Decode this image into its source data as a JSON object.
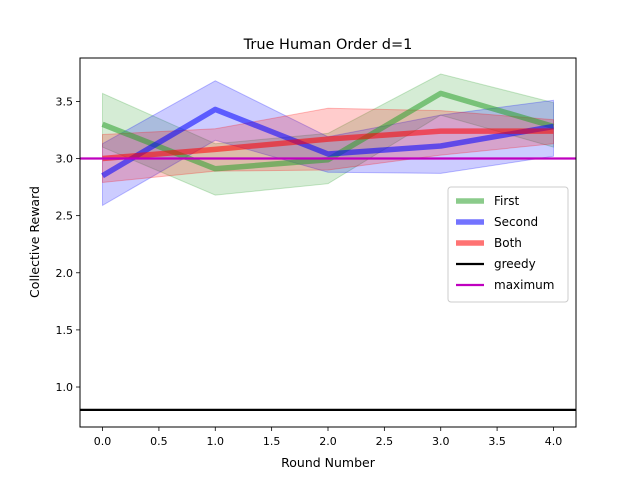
{
  "chart_data": {
    "type": "line",
    "title": "True Human Order d=1",
    "xlabel": "Round Number",
    "ylabel": "Collective Reward",
    "x": [
      0,
      1,
      2,
      3,
      4
    ],
    "xlim": [
      -0.2,
      4.2
    ],
    "ylim": [
      0.65,
      3.88
    ],
    "xticks": [
      0.0,
      0.5,
      1.0,
      1.5,
      2.0,
      2.5,
      3.0,
      3.5,
      4.0
    ],
    "yticks": [
      1.0,
      1.5,
      2.0,
      2.5,
      3.0,
      3.5
    ],
    "xtick_labels": [
      "0.0",
      "0.5",
      "1.0",
      "1.5",
      "2.0",
      "2.5",
      "3.0",
      "3.5",
      "4.0"
    ],
    "ytick_labels": [
      "1.0",
      "1.5",
      "2.0",
      "2.5",
      "3.0",
      "3.5"
    ],
    "grid": false,
    "legend_position": "center-right",
    "series": [
      {
        "name": "First",
        "color": "#2ca02c",
        "values": [
          3.3,
          2.91,
          2.99,
          3.57,
          3.28
        ],
        "lower": [
          3.1,
          2.68,
          2.78,
          3.38,
          3.1
        ],
        "upper": [
          3.57,
          3.13,
          3.22,
          3.74,
          3.49
        ]
      },
      {
        "name": "Second",
        "color": "#0000ff",
        "values": [
          2.85,
          3.43,
          3.04,
          3.11,
          3.28
        ],
        "lower": [
          2.59,
          3.16,
          2.88,
          2.87,
          3.02
        ],
        "upper": [
          3.13,
          3.68,
          3.19,
          3.38,
          3.51
        ]
      },
      {
        "name": "Both",
        "color": "#ff0000",
        "values": [
          3.0,
          3.08,
          3.17,
          3.24,
          3.24
        ],
        "lower": [
          2.79,
          2.89,
          2.9,
          3.03,
          3.13
        ],
        "upper": [
          3.21,
          3.26,
          3.44,
          3.42,
          3.34
        ]
      }
    ],
    "hlines": [
      {
        "name": "greedy",
        "color": "#000000",
        "y": 0.8
      },
      {
        "name": "maximum",
        "color": "#bf00bf",
        "y": 3.0
      }
    ]
  }
}
